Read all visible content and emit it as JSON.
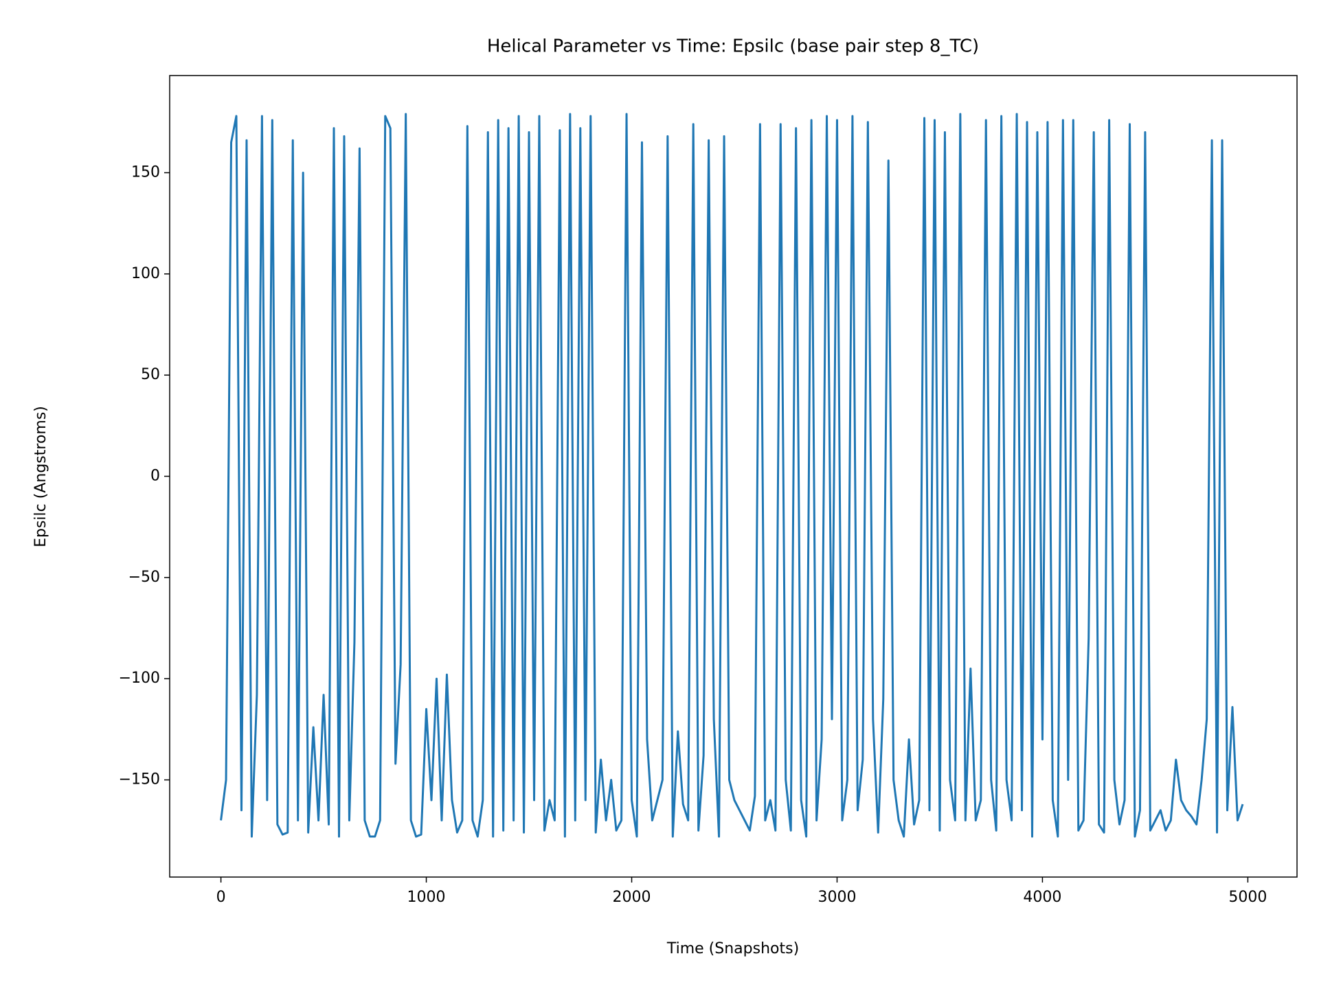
{
  "chart_data": {
    "type": "line",
    "title": "Helical Parameter vs Time: Epsilc (base pair step 8_TC)",
    "xlabel": "Time (Snapshots)",
    "ylabel": "Epsilc (Angstroms)",
    "xlim": [
      -249.5,
      5239.5
    ],
    "ylim": [
      -198,
      198
    ],
    "xticks": [
      0,
      1000,
      2000,
      3000,
      4000,
      5000
    ],
    "yticks": [
      {
        "value": -150,
        "label": "−150"
      },
      {
        "value": -100,
        "label": "−100"
      },
      {
        "value": -50,
        "label": "−50"
      },
      0,
      50,
      100,
      150
    ],
    "grid": false,
    "x": [
      0,
      25,
      50,
      75,
      100,
      125,
      150,
      175,
      200,
      225,
      250,
      275,
      300,
      325,
      350,
      375,
      400,
      425,
      450,
      475,
      500,
      525,
      550,
      575,
      600,
      625,
      650,
      675,
      700,
      725,
      750,
      775,
      800,
      825,
      850,
      875,
      900,
      925,
      950,
      975,
      1000,
      1025,
      1050,
      1075,
      1100,
      1125,
      1150,
      1175,
      1200,
      1225,
      1250,
      1275,
      1300,
      1325,
      1350,
      1375,
      1400,
      1425,
      1450,
      1475,
      1500,
      1525,
      1550,
      1575,
      1600,
      1625,
      1650,
      1675,
      1700,
      1725,
      1750,
      1775,
      1800,
      1825,
      1850,
      1875,
      1900,
      1925,
      1950,
      1975,
      2000,
      2025,
      2050,
      2075,
      2100,
      2125,
      2150,
      2175,
      2200,
      2225,
      2250,
      2275,
      2300,
      2325,
      2350,
      2375,
      2400,
      2425,
      2450,
      2475,
      2500,
      2525,
      2550,
      2575,
      2600,
      2625,
      2650,
      2675,
      2700,
      2725,
      2750,
      2775,
      2800,
      2825,
      2850,
      2875,
      2900,
      2925,
      2950,
      2975,
      3000,
      3025,
      3050,
      3075,
      3100,
      3125,
      3150,
      3175,
      3200,
      3225,
      3250,
      3275,
      3300,
      3325,
      3350,
      3375,
      3400,
      3425,
      3450,
      3475,
      3500,
      3525,
      3550,
      3575,
      3600,
      3625,
      3650,
      3675,
      3700,
      3725,
      3750,
      3775,
      3800,
      3825,
      3850,
      3875,
      3900,
      3925,
      3950,
      3975,
      4000,
      4025,
      4050,
      4075,
      4100,
      4125,
      4150,
      4175,
      4200,
      4225,
      4250,
      4275,
      4300,
      4325,
      4350,
      4375,
      4400,
      4425,
      4450,
      4475,
      4500,
      4525,
      4550,
      4575,
      4600,
      4625,
      4650,
      4675,
      4700,
      4725,
      4750,
      4775,
      4800,
      4825,
      4850,
      4875,
      4900,
      4925,
      4950,
      4975
    ],
    "series": [
      {
        "name": "Epsilc",
        "color": "#1f77b4",
        "values": [
          -170,
          -150,
          165,
          178,
          -165,
          166,
          -178,
          -108,
          178,
          -160,
          176,
          -172,
          -177,
          -176,
          166,
          -170,
          150,
          -176,
          -124,
          -170,
          -108,
          -172,
          172,
          -178,
          168,
          -170,
          -82,
          162,
          -170,
          -178,
          -178,
          -170,
          178,
          172,
          -142,
          -93,
          179,
          -170,
          -178,
          -177,
          -115,
          -160,
          -100,
          -170,
          -98,
          -160,
          -176,
          -170,
          173,
          -170,
          -178,
          -160,
          170,
          -178,
          176,
          -175,
          172,
          -170,
          178,
          -176,
          170,
          -160,
          178,
          -175,
          -160,
          -170,
          171,
          -178,
          179,
          -170,
          172,
          -160,
          178,
          -176,
          -140,
          -170,
          -150,
          -175,
          -170,
          179,
          -160,
          -178,
          165,
          -130,
          -170,
          -160,
          -150,
          168,
          -178,
          -126,
          -162,
          -170,
          174,
          -175,
          -138,
          166,
          -120,
          -178,
          168,
          -150,
          -160,
          -165,
          -170,
          -175,
          -158,
          174,
          -170,
          -160,
          -175,
          174,
          -150,
          -175,
          172,
          -160,
          -178,
          176,
          -170,
          -130,
          178,
          -120,
          176,
          -170,
          -150,
          178,
          -165,
          -140,
          175,
          -120,
          -176,
          -110,
          156,
          -150,
          -170,
          -178,
          -130,
          -172,
          -160,
          177,
          -165,
          176,
          -175,
          170,
          -150,
          -170,
          179,
          -170,
          -95,
          -170,
          -160,
          176,
          -150,
          -175,
          178,
          -150,
          -170,
          179,
          -165,
          175,
          -178,
          170,
          -130,
          175,
          -160,
          -178,
          176,
          -150,
          176,
          -175,
          -170,
          -80,
          170,
          -172,
          -176,
          176,
          -150,
          -172,
          -160,
          174,
          -178,
          -165,
          170,
          -175,
          -170,
          -165,
          -175,
          -170,
          -140,
          -160,
          -165,
          -168,
          -172,
          -150,
          -120,
          166,
          -176,
          166,
          -165,
          -114,
          -170,
          -162
        ]
      }
    ]
  }
}
